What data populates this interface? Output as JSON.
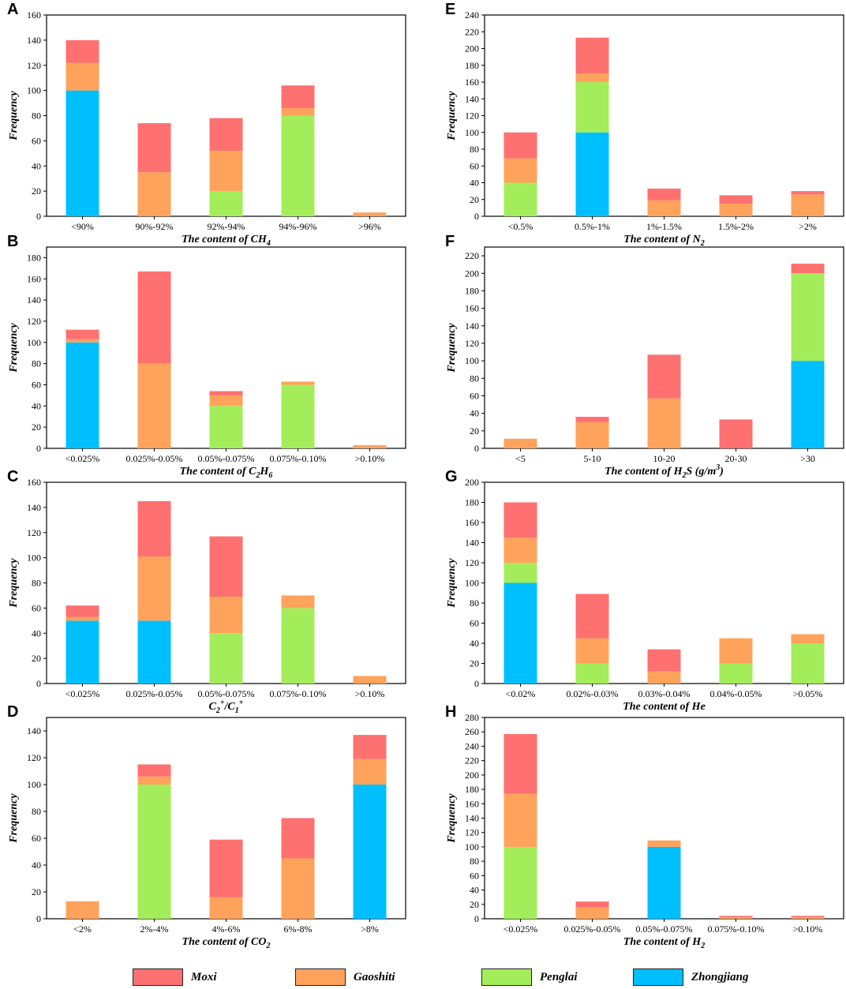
{
  "colors": {
    "Moxi": "#ff7070",
    "Gaoshiti": "#ffa35c",
    "Penglai": "#a4ed5a",
    "Zhongjiang": "#00bfff"
  },
  "legend": [
    {
      "key": "Moxi",
      "label": "Moxi"
    },
    {
      "key": "Gaoshiti",
      "label": "Gaoshiti"
    },
    {
      "key": "Penglai",
      "label": "Penglai"
    },
    {
      "key": "Zhongjiang",
      "label": "Zhongjiang"
    }
  ],
  "chart_data": [
    {
      "panel": "A",
      "type": "bar",
      "stacked": true,
      "title_parts": [
        [
          "The content of CH",
          "n"
        ],
        [
          "4",
          "sub"
        ]
      ],
      "ylabel": "Frequency",
      "ylim": [
        0,
        160
      ],
      "yticks": [
        0,
        20,
        40,
        60,
        80,
        100,
        120,
        140,
        160
      ],
      "categories": [
        "<90%",
        "90%-92%",
        "92%-94%",
        "94%-96%",
        ">96%"
      ],
      "series": [
        {
          "name": "Zhongjiang",
          "values": [
            100,
            0,
            0,
            0,
            0
          ]
        },
        {
          "name": "Penglai",
          "values": [
            0,
            0,
            20,
            80,
            0
          ]
        },
        {
          "name": "Gaoshiti",
          "values": [
            22,
            35,
            32,
            6,
            3
          ]
        },
        {
          "name": "Moxi",
          "values": [
            18,
            39,
            26,
            18,
            0
          ]
        }
      ]
    },
    {
      "panel": "B",
      "type": "bar",
      "stacked": true,
      "title_parts": [
        [
          "The content of C",
          "n"
        ],
        [
          "2",
          "sub"
        ],
        [
          "H",
          "n"
        ],
        [
          "6",
          "sub"
        ]
      ],
      "ylabel": "Frequency",
      "ylim": [
        0,
        190
      ],
      "yticks": [
        0,
        20,
        40,
        60,
        80,
        100,
        120,
        140,
        160,
        180
      ],
      "categories": [
        "<0.025%",
        "0.025%-0.05%",
        "0.05%-0.075%",
        "0.075%-0.10%",
        ">0.10%"
      ],
      "series": [
        {
          "name": "Zhongjiang",
          "values": [
            100,
            0,
            0,
            0,
            0
          ]
        },
        {
          "name": "Penglai",
          "values": [
            0,
            0,
            40,
            60,
            0
          ]
        },
        {
          "name": "Gaoshiti",
          "values": [
            3,
            80,
            10,
            3,
            3
          ]
        },
        {
          "name": "Moxi",
          "values": [
            9,
            87,
            4,
            0,
            0
          ]
        }
      ]
    },
    {
      "panel": "C",
      "type": "bar",
      "stacked": true,
      "title_parts": [
        [
          "C",
          "n"
        ],
        [
          "2",
          "sub"
        ],
        [
          "+",
          "sup"
        ],
        [
          "/C",
          "n"
        ],
        [
          "1",
          "sub"
        ],
        [
          "+",
          "sup"
        ]
      ],
      "ylabel": "Frequency",
      "ylim": [
        0,
        160
      ],
      "yticks": [
        0,
        20,
        40,
        60,
        80,
        100,
        120,
        140,
        160
      ],
      "categories": [
        "<0.025%",
        "0.025%-0.05%",
        "0.05%-0.075%",
        "0.075%-0.10%",
        ">0.10%"
      ],
      "series": [
        {
          "name": "Zhongjiang",
          "values": [
            50,
            50,
            0,
            0,
            0
          ]
        },
        {
          "name": "Penglai",
          "values": [
            0,
            0,
            40,
            60,
            0
          ]
        },
        {
          "name": "Gaoshiti",
          "values": [
            3,
            51,
            29,
            10,
            6
          ]
        },
        {
          "name": "Moxi",
          "values": [
            9,
            44,
            48,
            0,
            0
          ]
        }
      ]
    },
    {
      "panel": "D",
      "type": "bar",
      "stacked": true,
      "title_parts": [
        [
          "The content of CO",
          "n"
        ],
        [
          "2",
          "sub"
        ]
      ],
      "ylabel": "Frequency",
      "ylim": [
        0,
        150
      ],
      "yticks": [
        0,
        20,
        40,
        60,
        80,
        100,
        120,
        140
      ],
      "categories": [
        "<2%",
        "2%-4%",
        "4%-6%",
        "6%-8%",
        ">8%"
      ],
      "series": [
        {
          "name": "Zhongjiang",
          "values": [
            0,
            0,
            0,
            0,
            100
          ]
        },
        {
          "name": "Penglai",
          "values": [
            0,
            100,
            0,
            0,
            0
          ]
        },
        {
          "name": "Gaoshiti",
          "values": [
            13,
            6,
            16,
            45,
            19
          ]
        },
        {
          "name": "Moxi",
          "values": [
            0,
            9,
            43,
            30,
            18
          ]
        }
      ]
    },
    {
      "panel": "E",
      "type": "bar",
      "stacked": true,
      "title_parts": [
        [
          "The content of N",
          "n"
        ],
        [
          "2",
          "sub"
        ]
      ],
      "ylabel": "Frequency",
      "ylim": [
        0,
        240
      ],
      "yticks": [
        0,
        20,
        40,
        60,
        80,
        100,
        120,
        140,
        160,
        180,
        200,
        220,
        240
      ],
      "categories": [
        "<0.5%",
        "0.5%-1%",
        "1%-1.5%",
        "1.5%-2%",
        ">2%"
      ],
      "series": [
        {
          "name": "Zhongjiang",
          "values": [
            0,
            100,
            0,
            0,
            0
          ]
        },
        {
          "name": "Penglai",
          "values": [
            40,
            60,
            0,
            0,
            0
          ]
        },
        {
          "name": "Gaoshiti",
          "values": [
            29,
            10,
            19,
            15,
            26
          ]
        },
        {
          "name": "Moxi",
          "values": [
            31,
            43,
            14,
            10,
            4
          ]
        }
      ]
    },
    {
      "panel": "F",
      "type": "bar",
      "stacked": true,
      "title_parts": [
        [
          "The content of H",
          "n"
        ],
        [
          "2",
          "sub"
        ],
        [
          "S (g/m",
          "n"
        ],
        [
          "3",
          "sup"
        ],
        [
          ")",
          "n"
        ]
      ],
      "ylabel": "Frequency",
      "ylim": [
        0,
        230
      ],
      "yticks": [
        0,
        20,
        40,
        60,
        80,
        100,
        120,
        140,
        160,
        180,
        200,
        220
      ],
      "categories": [
        "<5",
        "5-10",
        "10-20",
        "20-30",
        ">30"
      ],
      "series": [
        {
          "name": "Zhongjiang",
          "values": [
            0,
            0,
            0,
            0,
            100
          ]
        },
        {
          "name": "Penglai",
          "values": [
            0,
            0,
            0,
            0,
            100
          ]
        },
        {
          "name": "Gaoshiti",
          "values": [
            11,
            30,
            57,
            0,
            0
          ]
        },
        {
          "name": "Moxi",
          "values": [
            0,
            6,
            50,
            33,
            11
          ]
        }
      ]
    },
    {
      "panel": "G",
      "type": "bar",
      "stacked": true,
      "title_parts": [
        [
          "The content of He",
          "n"
        ]
      ],
      "ylabel": "Frequency",
      "ylim": [
        0,
        200
      ],
      "yticks": [
        0,
        20,
        40,
        60,
        80,
        100,
        120,
        140,
        160,
        180,
        200
      ],
      "categories": [
        "<0.02%",
        "0.02%-0.03%",
        "0.03%-0.04%",
        "0.04%-0.05%",
        ">0.05%"
      ],
      "series": [
        {
          "name": "Zhongjiang",
          "values": [
            100,
            0,
            0,
            0,
            0
          ]
        },
        {
          "name": "Penglai",
          "values": [
            20,
            20,
            0,
            20,
            40
          ]
        },
        {
          "name": "Gaoshiti",
          "values": [
            25,
            25,
            12,
            25,
            9
          ]
        },
        {
          "name": "Moxi",
          "values": [
            35,
            44,
            22,
            0,
            0
          ]
        }
      ]
    },
    {
      "panel": "H",
      "type": "bar",
      "stacked": true,
      "title_parts": [
        [
          "The content of H",
          "n"
        ],
        [
          "2",
          "sub"
        ]
      ],
      "ylabel": "Frequency",
      "ylim": [
        0,
        280
      ],
      "yticks": [
        0,
        20,
        40,
        60,
        80,
        100,
        120,
        140,
        160,
        180,
        200,
        220,
        240,
        260,
        280
      ],
      "categories": [
        "<0.025%",
        "0.025%-0.05%",
        "0.05%-0.075%",
        "0.075%-0.10%",
        ">0.10%"
      ],
      "series": [
        {
          "name": "Zhongjiang",
          "values": [
            0,
            0,
            100,
            0,
            0
          ]
        },
        {
          "name": "Penglai",
          "values": [
            100,
            0,
            0,
            0,
            0
          ]
        },
        {
          "name": "Gaoshiti",
          "values": [
            74,
            16,
            9,
            2,
            2
          ]
        },
        {
          "name": "Moxi",
          "values": [
            83,
            8,
            0,
            2,
            2
          ]
        }
      ]
    }
  ]
}
